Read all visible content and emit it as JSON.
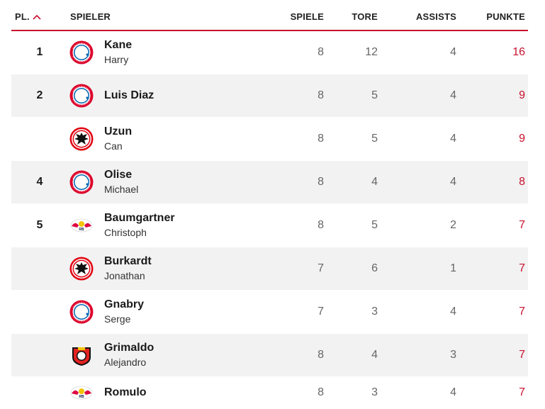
{
  "header": {
    "rank": "PL.",
    "player": "SPIELER",
    "games": "SPIELE",
    "goals": "TORE",
    "assists": "ASSISTS",
    "points": "PUNKTE"
  },
  "colors": {
    "accent": "#c8102e",
    "row_alt": "#f2f2f2",
    "bayern_red": "#dc052d",
    "bayern_blue": "#0066b2",
    "frankfurt_red": "#e1000f",
    "leipzig_red": "#dd0741",
    "leverkusen_red": "#e32221"
  },
  "rows": [
    {
      "rank": "1",
      "last": "Kane",
      "first": "Harry",
      "club_icon": "bayern-logo-icon",
      "games": "8",
      "goals": "12",
      "assists": "4",
      "points": "16"
    },
    {
      "rank": "2",
      "last": "Luis Diaz",
      "first": "",
      "club_icon": "bayern-logo-icon",
      "games": "8",
      "goals": "5",
      "assists": "4",
      "points": "9"
    },
    {
      "rank": "",
      "last": "Uzun",
      "first": "Can",
      "club_icon": "frankfurt-logo-icon",
      "games": "8",
      "goals": "5",
      "assists": "4",
      "points": "9"
    },
    {
      "rank": "4",
      "last": "Olise",
      "first": "Michael",
      "club_icon": "bayern-logo-icon",
      "games": "8",
      "goals": "4",
      "assists": "4",
      "points": "8"
    },
    {
      "rank": "5",
      "last": "Baumgartner",
      "first": "Christoph",
      "club_icon": "leipzig-logo-icon",
      "games": "8",
      "goals": "5",
      "assists": "2",
      "points": "7"
    },
    {
      "rank": "",
      "last": "Burkardt",
      "first": "Jonathan",
      "club_icon": "frankfurt-logo-icon",
      "games": "7",
      "goals": "6",
      "assists": "1",
      "points": "7"
    },
    {
      "rank": "",
      "last": "Gnabry",
      "first": "Serge",
      "club_icon": "bayern-logo-icon",
      "games": "7",
      "goals": "3",
      "assists": "4",
      "points": "7"
    },
    {
      "rank": "",
      "last": "Grimaldo",
      "first": "Alejandro",
      "club_icon": "leverkusen-logo-icon",
      "games": "8",
      "goals": "4",
      "assists": "3",
      "points": "7"
    },
    {
      "rank": "",
      "last": "Romulo",
      "first": "",
      "club_icon": "leipzig-logo-icon",
      "games": "8",
      "goals": "3",
      "assists": "4",
      "points": "7"
    }
  ]
}
